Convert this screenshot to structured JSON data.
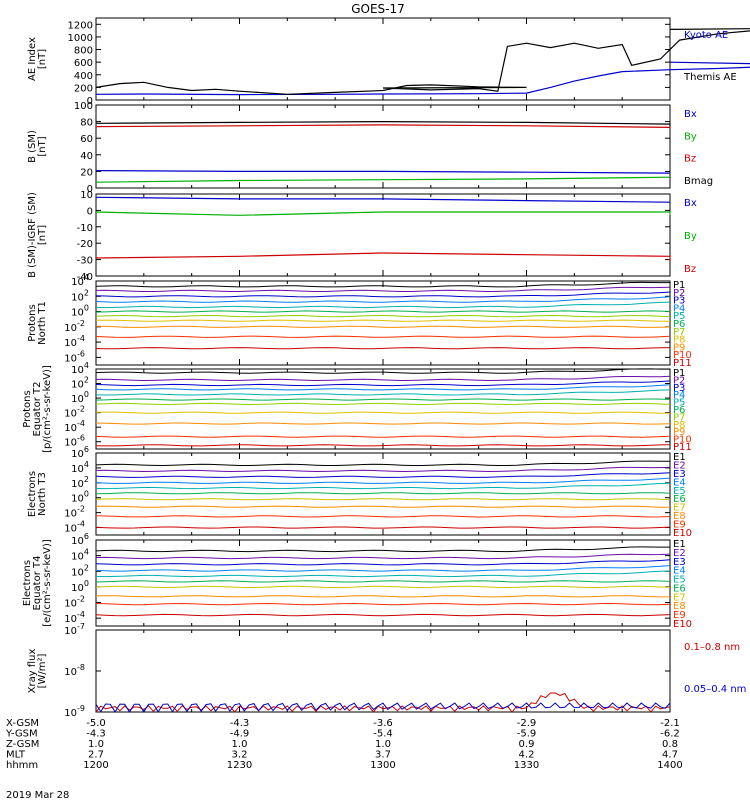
{
  "title": "GOES-17",
  "x_ticks": [
    "1200",
    "1230",
    "1300",
    "1330",
    "1400"
  ],
  "ephemeris": [
    {
      "label": "X-GSM",
      "values": [
        "-5.0",
        "-4.3",
        "-3.6",
        "-2.9",
        "-2.1"
      ]
    },
    {
      "label": "Y-GSM",
      "values": [
        "-4.3",
        "-4.9",
        "-5.4",
        "-5.9",
        "-6.2"
      ]
    },
    {
      "label": "Z-GSM",
      "values": [
        "1.0",
        "1.0",
        "1.0",
        "0.9",
        "0.8"
      ]
    },
    {
      "label": "MLT",
      "values": [
        "2.7",
        "3.2",
        "3.7",
        "4.2",
        "4.7"
      ]
    },
    {
      "label": "hhmm",
      "values": [
        "1200",
        "1230",
        "1300",
        "1330",
        "1400"
      ]
    }
  ],
  "date": "2019 Mar 28",
  "colors": {
    "black": "#000000",
    "blue": "#0000cc",
    "green": "#00b000",
    "red": "#cc0000"
  },
  "chart_data": [
    {
      "type": "line",
      "ylabel": "AE Index\n[nT]",
      "ylim": [
        0,
        1300
      ],
      "y_ticks": [
        "0",
        "200",
        "400",
        "600",
        "800",
        "1000",
        "1200"
      ],
      "x": [
        1200,
        1400
      ],
      "series": [
        {
          "name": "Kyoto AE",
          "color": "#0000cc",
          "points": [
            [
              1200,
              90
            ],
            [
              1210,
              95
            ],
            [
              1230,
              85
            ],
            [
              1250,
              90
            ],
            [
              1300,
              95
            ],
            [
              1320,
              100
            ],
            [
              1330,
              110
            ],
            [
              1335,
              200
            ],
            [
              1340,
              300
            ],
            [
              1345,
              380
            ],
            [
              1350,
              450
            ],
            [
              1360,
              480
            ],
            [
              1370,
              500
            ],
            [
              1380,
              530
            ],
            [
              1390,
              560
            ],
            [
              1400,
              600
            ]
          ]
        },
        {
          "name": "Themis AE",
          "color": "#000000",
          "points": [
            [
              1200,
              200
            ],
            [
              1205,
              260
            ],
            [
              1210,
              280
            ],
            [
              1215,
              200
            ],
            [
              1220,
              150
            ],
            [
              1225,
              170
            ],
            [
              1230,
              140
            ],
            [
              1240,
              90
            ],
            [
              1250,
              120
            ],
            [
              1260,
              150
            ],
            [
              1265,
              230
            ],
            [
              1270,
              240
            ],
            [
              1280,
              210
            ],
            [
              1290,
              200
            ],
            [
              1300,
              190
            ],
            [
              1310,
              160
            ],
            [
              1320,
              180
            ],
            [
              1324,
              140
            ],
            [
              1326,
              850
            ],
            [
              1330,
              900
            ],
            [
              1335,
              830
            ],
            [
              1340,
              900
            ],
            [
              1345,
              820
            ],
            [
              1350,
              880
            ],
            [
              1352,
              550
            ],
            [
              1358,
              650
            ],
            [
              1362,
              950
            ],
            [
              1370,
              1050
            ],
            [
              1380,
              1120
            ],
            [
              1390,
              1140
            ],
            [
              1400,
              1120
            ]
          ]
        }
      ],
      "legend_top": [
        "Kyoto AE"
      ],
      "legend_bottom": [
        "Themis AE"
      ]
    },
    {
      "type": "line",
      "ylabel": "B (SM)\n[nT]",
      "ylim": [
        0,
        100
      ],
      "y_ticks": [
        "0",
        "20",
        "40",
        "60",
        "80",
        "100"
      ],
      "series": [
        {
          "name": "Bx",
          "color": "#0000cc",
          "points": [
            [
              1200,
              21
            ],
            [
              1230,
              20
            ],
            [
              1300,
              20
            ],
            [
              1330,
              19
            ],
            [
              1400,
              18
            ]
          ]
        },
        {
          "name": "By",
          "color": "#00b000",
          "points": [
            [
              1200,
              7
            ],
            [
              1230,
              9
            ],
            [
              1300,
              10
            ],
            [
              1330,
              11
            ],
            [
              1400,
              13
            ]
          ]
        },
        {
          "name": "Bz",
          "color": "#cc0000",
          "points": [
            [
              1200,
              74
            ],
            [
              1230,
              75
            ],
            [
              1300,
              76
            ],
            [
              1330,
              75
            ],
            [
              1360,
              73
            ],
            [
              1400,
              72
            ]
          ]
        },
        {
          "name": "Bmag",
          "color": "#000000",
          "points": [
            [
              1200,
              78
            ],
            [
              1230,
              79
            ],
            [
              1300,
              80
            ],
            [
              1330,
              79
            ],
            [
              1360,
              77
            ],
            [
              1400,
              75
            ]
          ]
        }
      ],
      "legend": [
        "Bx",
        "By",
        "Bz",
        "Bmag"
      ]
    },
    {
      "type": "line",
      "ylabel": "B (SM)-IGRF (SM)\n[nT]",
      "ylim": [
        -40,
        10
      ],
      "y_ticks": [
        "-40",
        "-30",
        "-20",
        "-10",
        "0",
        "10"
      ],
      "series": [
        {
          "name": "Bx",
          "color": "#0000cc",
          "points": [
            [
              1200,
              8
            ],
            [
              1230,
              7
            ],
            [
              1300,
              7
            ],
            [
              1330,
              6
            ],
            [
              1400,
              5
            ]
          ]
        },
        {
          "name": "By",
          "color": "#00b000",
          "points": [
            [
              1200,
              -1
            ],
            [
              1230,
              -3
            ],
            [
              1300,
              -1
            ],
            [
              1330,
              -1
            ],
            [
              1360,
              -1
            ],
            [
              1400,
              -3
            ]
          ]
        },
        {
          "name": "Bz",
          "color": "#cc0000",
          "points": [
            [
              1200,
              -29
            ],
            [
              1230,
              -28
            ],
            [
              1300,
              -26
            ],
            [
              1330,
              -27
            ],
            [
              1360,
              -28
            ],
            [
              1400,
              -31
            ]
          ]
        }
      ],
      "legend": [
        "Bx",
        "By",
        "Bz"
      ]
    },
    {
      "type": "line",
      "log": true,
      "ylabel": "Protons\nNorth T1",
      "ylim": [
        -7,
        4
      ],
      "y_ticks": [
        "10^4",
        "10^2",
        "10^0",
        "10^-2",
        "10^-4",
        "10^-6"
      ],
      "levels": [
        3.3,
        2.7,
        2.0,
        1.3,
        0.6,
        0.0,
        -0.6,
        -1.2,
        -2.0,
        -3.3,
        -4.8
      ],
      "legend": [
        "P1",
        "P2",
        "P3",
        "P4",
        "P5",
        "P6",
        "P7",
        "P8",
        "P9",
        "P10",
        "P11"
      ]
    },
    {
      "type": "line",
      "log": true,
      "ylabel": "Protons\nEquator T2\n[p/(cm²-s-sr-keV)]",
      "ylim": [
        -7,
        4
      ],
      "y_ticks": [
        "10^4",
        "10^2",
        "10^0",
        "10^-2",
        "10^-4",
        "10^-6"
      ],
      "levels": [
        3.5,
        2.5,
        1.8,
        1.2,
        0.5,
        -0.2,
        -0.8,
        -2.0,
        -3.5,
        -5.3,
        -6.5
      ],
      "legend": [
        "P1",
        "P2",
        "P3",
        "P4",
        "P5",
        "P6",
        "P7",
        "P8",
        "P9",
        "P10",
        "P11"
      ]
    },
    {
      "type": "line",
      "log": true,
      "ylabel": "Electrons\nNorth T3",
      "ylim": [
        -5,
        6
      ],
      "y_ticks": [
        "10^6",
        "10^4",
        "10^2",
        "10^0",
        "10^-2",
        "10^-4"
      ],
      "levels": [
        4.4,
        3.6,
        2.8,
        2.0,
        1.3,
        0.6,
        -0.2,
        -1.2,
        -2.5,
        -4.0
      ],
      "legend": [
        "E1",
        "E2",
        "E3",
        "E4",
        "E5",
        "E6",
        "E7",
        "E8",
        "E9",
        "E10"
      ]
    },
    {
      "type": "line",
      "log": true,
      "ylabel": "Electrons\nEquator T4\n[e/(cm²-s-sr-keV)]",
      "ylim": [
        -5,
        6
      ],
      "y_ticks": [
        "10^6",
        "10^4",
        "10^2",
        "10^0",
        "10^-2",
        "10^-4"
      ],
      "levels": [
        4.6,
        3.7,
        2.9,
        2.1,
        1.4,
        0.7,
        0.0,
        -1.2,
        -2.2,
        -3.6
      ],
      "legend": [
        "E1",
        "E2",
        "E3",
        "E4",
        "E5",
        "E6",
        "E7",
        "E8",
        "E9",
        "E10"
      ]
    },
    {
      "type": "line",
      "log": true,
      "ylabel": "Xray flux\n[W/m²]",
      "ylim": [
        -9,
        -7
      ],
      "y_ticks": [
        "10^-7",
        "10^-8",
        "10^-9"
      ],
      "legend_top": [
        "0.1–0.8 nm"
      ],
      "legend_bottom": [
        "0.05–0.4 nm"
      ]
    }
  ]
}
